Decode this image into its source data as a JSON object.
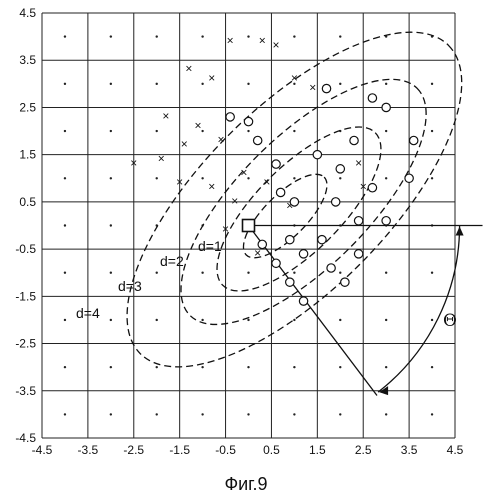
{
  "figure": {
    "caption": "Фиг.9",
    "x_tick_labels": [
      "-4.5",
      "-3.5",
      "-2.5",
      "-1.5",
      "-0.5",
      "0.5",
      "1.5",
      "2.5",
      "3.5",
      "4.5"
    ],
    "y_tick_labels": [
      "4.5",
      "3.5",
      "2.5",
      "1.5",
      "0.5",
      "-0.5",
      "-1.5",
      "-2.5",
      "-3.5",
      "-4.5"
    ],
    "contour_labels": [
      "d=1",
      "d=2",
      "d=3",
      "d=4"
    ],
    "angle_label": "Θ"
  },
  "chart_data": {
    "type": "scatter",
    "xlim": [
      -4.5,
      4.5
    ],
    "ylim": [
      -4.5,
      4.5
    ],
    "grid": true,
    "x_ticks": [
      -4.5,
      -3.5,
      -2.5,
      -1.5,
      -0.5,
      0.5,
      1.5,
      2.5,
      3.5,
      4.5
    ],
    "y_ticks": [
      4.5,
      3.5,
      2.5,
      1.5,
      0.5,
      -0.5,
      -1.5,
      -2.5,
      -3.5,
      -4.5
    ],
    "grid_centers": [
      -4,
      -3,
      -2,
      -1,
      0,
      1,
      2,
      3,
      4
    ],
    "center": [
      0,
      0
    ],
    "contour_levels": [
      1,
      2,
      3,
      4
    ],
    "ellipses": [
      {
        "d": 1,
        "cx": 0.8,
        "cy": 0.2,
        "a": 1.2,
        "b": 0.45,
        "angle_deg": 45
      },
      {
        "d": 2,
        "cx": 1.1,
        "cy": 0.35,
        "a": 2.35,
        "b": 0.9,
        "angle_deg": 45
      },
      {
        "d": 3,
        "cx": 1.2,
        "cy": 0.5,
        "a": 3.5,
        "b": 1.38,
        "angle_deg": 45
      },
      {
        "d": 4,
        "cx": 1.0,
        "cy": 0.55,
        "a": 4.75,
        "b": 1.95,
        "angle_deg": 45
      }
    ],
    "circle_points": [
      [
        0.7,
        0.7
      ],
      [
        1.0,
        0.5
      ],
      [
        0.6,
        1.3
      ],
      [
        1.5,
        1.5
      ],
      [
        0.2,
        1.8
      ],
      [
        0.0,
        2.2
      ],
      [
        -0.4,
        2.3
      ],
      [
        0.9,
        -0.3
      ],
      [
        1.2,
        -0.6
      ],
      [
        1.6,
        -0.3
      ],
      [
        1.8,
        -0.9
      ],
      [
        1.9,
        0.5
      ],
      [
        2.0,
        1.2
      ],
      [
        2.4,
        0.1
      ],
      [
        2.7,
        0.8
      ],
      [
        2.3,
        1.8
      ],
      [
        3.0,
        2.5
      ],
      [
        2.7,
        2.7
      ],
      [
        1.7,
        2.9
      ],
      [
        3.6,
        1.8
      ],
      [
        3.5,
        1.0
      ],
      [
        3.0,
        0.1
      ],
      [
        2.4,
        -0.6
      ],
      [
        2.1,
        -1.2
      ],
      [
        0.3,
        -0.4
      ],
      [
        0.6,
        -0.8
      ],
      [
        0.9,
        -1.2
      ],
      [
        1.2,
        -1.6
      ]
    ],
    "cross_points": [
      [
        -0.4,
        3.9
      ],
      [
        0.3,
        3.9
      ],
      [
        0.6,
        3.8
      ],
      [
        -1.3,
        3.3
      ],
      [
        -0.8,
        3.1
      ],
      [
        1.0,
        3.1
      ],
      [
        1.4,
        2.9
      ],
      [
        -1.8,
        2.3
      ],
      [
        -1.1,
        2.1
      ],
      [
        -0.6,
        1.8
      ],
      [
        -1.4,
        1.7
      ],
      [
        -1.9,
        1.4
      ],
      [
        -2.5,
        1.3
      ],
      [
        -1.5,
        0.9
      ],
      [
        -0.8,
        0.8
      ],
      [
        -0.3,
        0.5
      ],
      [
        -0.1,
        1.1
      ],
      [
        0.4,
        0.9
      ],
      [
        0.9,
        0.4
      ],
      [
        2.4,
        1.3
      ],
      [
        2.5,
        0.8
      ],
      [
        -0.5,
        -0.1
      ],
      [
        0.2,
        -0.6
      ]
    ],
    "arrow_line": {
      "from": [
        0,
        0
      ],
      "to": [
        2.8,
        -3.6
      ]
    },
    "reference_line": {
      "from": [
        0,
        0
      ],
      "to": [
        5.1,
        0
      ]
    },
    "angle_arc_radius": 4.6
  }
}
